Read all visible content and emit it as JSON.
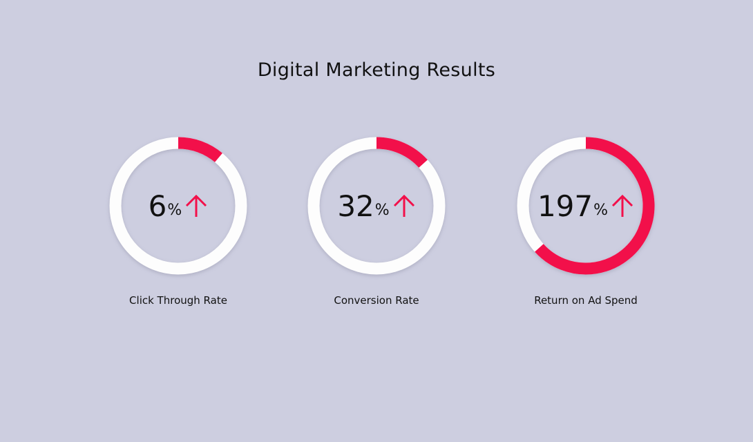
{
  "header": {
    "title": "Digital Marketing Results"
  },
  "metrics": [
    {
      "value": 6,
      "unit": "%",
      "label": "Click Through Rate"
    },
    {
      "value": 32,
      "unit": "%",
      "label": "Conversion Rate"
    },
    {
      "value": 197,
      "unit": "%",
      "label": "Return on Ad Spend"
    }
  ]
}
